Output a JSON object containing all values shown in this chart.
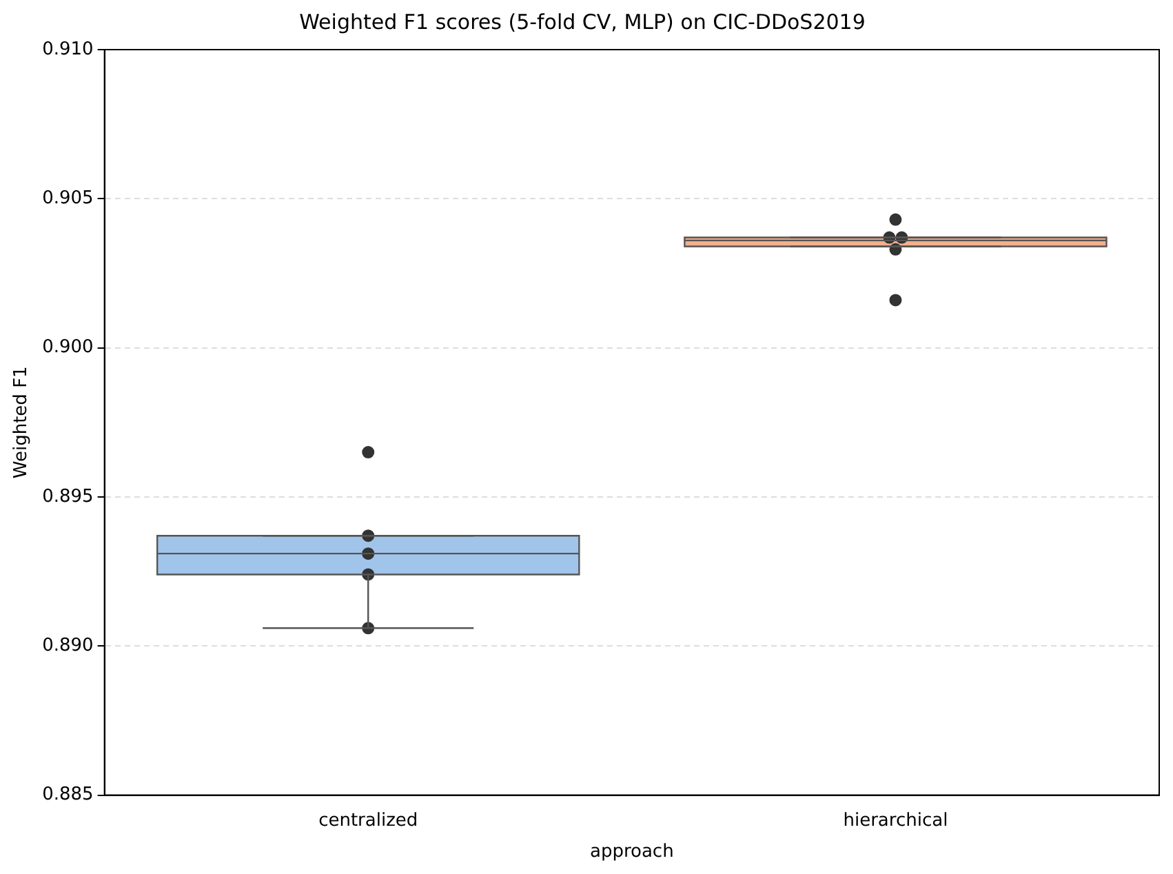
{
  "chart_data": {
    "type": "box",
    "title": "Weighted F1 scores (5-fold CV, MLP) on CIC-DDoS2019",
    "xlabel": "approach",
    "ylabel": "Weighted F1",
    "categories": [
      "centralized",
      "hierarchical"
    ],
    "colors": [
      "#a1c4ea",
      "#f4b08a"
    ],
    "boxes": [
      {
        "low": 0.8906,
        "q1": 0.8924,
        "median": 0.8931,
        "q3": 0.8937,
        "high": 0.8937
      },
      {
        "low": 0.9034,
        "q1": 0.9034,
        "median": 0.9036,
        "q3": 0.9037,
        "high": 0.9037
      }
    ],
    "series": [
      {
        "type": "scatter",
        "color": "#333333",
        "x": [
          "centralized",
          "centralized",
          "centralized",
          "centralized",
          "centralized",
          "hierarchical",
          "hierarchical",
          "hierarchical",
          "hierarchical",
          "hierarchical"
        ],
        "values": [
          0.8965,
          0.8937,
          0.8931,
          0.8924,
          0.8906,
          0.9043,
          0.9037,
          0.9037,
          0.9033,
          0.9016
        ]
      }
    ],
    "ylim": [
      0.885,
      0.91
    ],
    "yticks": [
      0.885,
      {
        "value": 0.89,
        "label": "0.890"
      },
      0.895,
      {
        "value": 0.9,
        "label": "0.900"
      },
      0.905,
      {
        "value": 0.91,
        "label": "0.910"
      }
    ],
    "grid": "y",
    "legend": false,
    "marker": "circle"
  }
}
